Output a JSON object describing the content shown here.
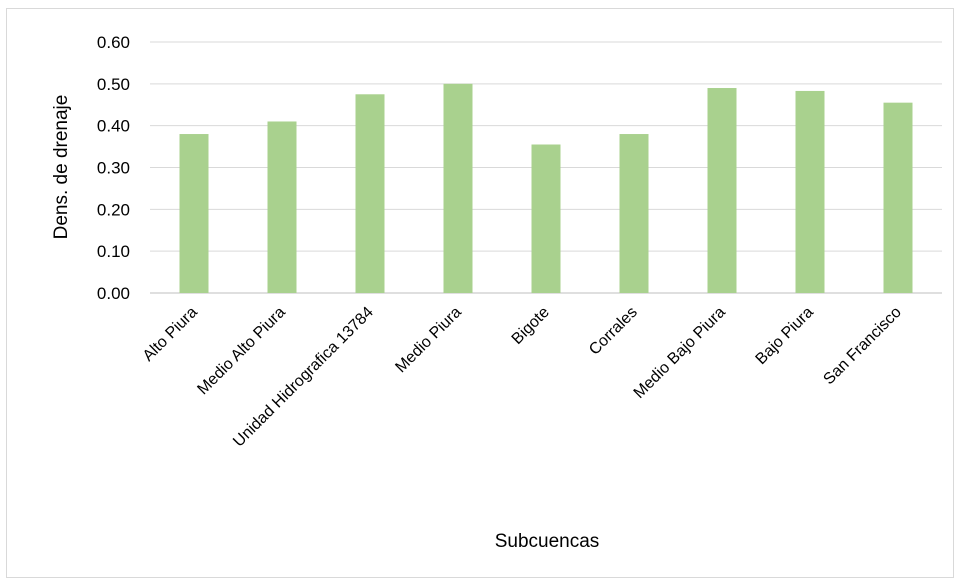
{
  "chart_data": {
    "type": "bar",
    "title": "",
    "xlabel": "Subcuencas",
    "ylabel": "Dens. de drenaje",
    "categories": [
      "Alto Piura",
      "Medio Alto Piura",
      "Unidad Hidrografica 13784",
      "Medio Piura",
      "Bigote",
      "Corrales",
      "Medio Bajo Piura",
      "Bajo Piura",
      "San Francisco"
    ],
    "values": [
      0.38,
      0.41,
      0.475,
      0.5,
      0.355,
      0.38,
      0.49,
      0.483,
      0.455
    ],
    "ylim": [
      0,
      0.6
    ],
    "yticks": [
      "0.00",
      "0.10",
      "0.20",
      "0.30",
      "0.40",
      "0.50",
      "0.60"
    ],
    "grid": true,
    "legend": "none",
    "bar_color": "#a9d18e"
  }
}
